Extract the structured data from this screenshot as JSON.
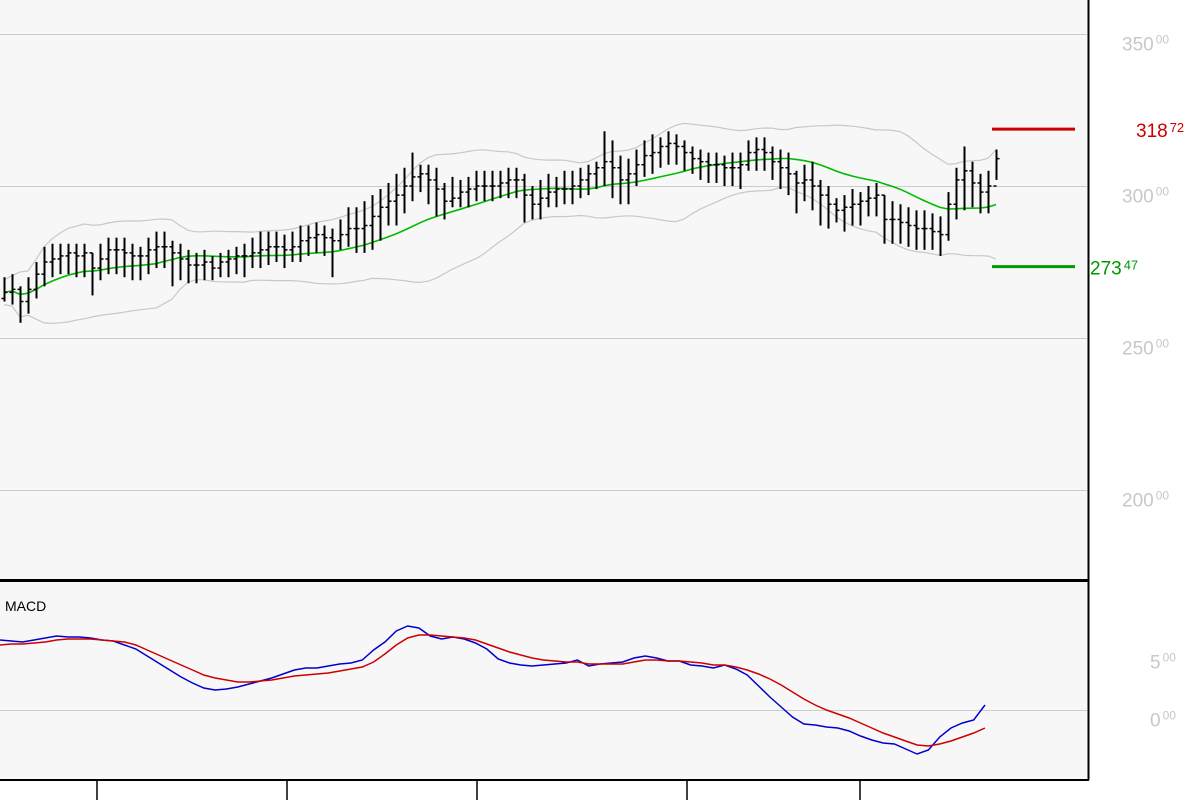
{
  "chart_data": [
    {
      "type": "ohlc",
      "indicators": [
        "bollinger-bands",
        "moving-average"
      ],
      "y_ticks": [
        {
          "value": 350,
          "int": "350",
          "dec": "00"
        },
        {
          "value": 300,
          "int": "300",
          "dec": "00"
        },
        {
          "value": 250,
          "int": "250",
          "dec": "00"
        },
        {
          "value": 200,
          "int": "200",
          "dec": "00"
        }
      ],
      "ylim": [
        172,
        362
      ],
      "grid": true,
      "levels": [
        {
          "name": "upper-level",
          "value": 318.72,
          "int": "318",
          "dec": "72",
          "color": "#cc0000"
        },
        {
          "name": "lower-level",
          "value": 273.47,
          "int": "273",
          "dec": "47",
          "color": "#009900"
        }
      ],
      "close": [
        265,
        266,
        262,
        266,
        271,
        275,
        276,
        277,
        278,
        277,
        278,
        273,
        276,
        279,
        279,
        278,
        277,
        277,
        279,
        280,
        280,
        278,
        276,
        274,
        274,
        275,
        273,
        275,
        276,
        277,
        277,
        278,
        279,
        280,
        280,
        279,
        280,
        282,
        283,
        284,
        283,
        282,
        284,
        286,
        286,
        287,
        290,
        293,
        295,
        297,
        300,
        303,
        304,
        302,
        299,
        295,
        296,
        298,
        299,
        300,
        300,
        300,
        301,
        302,
        302,
        297,
        294,
        296,
        298,
        299,
        299,
        300,
        302,
        304,
        306,
        308,
        306,
        302,
        304,
        307,
        310,
        311,
        313,
        314,
        313,
        311,
        309,
        308,
        307,
        307,
        306,
        306,
        307,
        311,
        312,
        311,
        308,
        306,
        304,
        301,
        302,
        300,
        297,
        294,
        292,
        293,
        294,
        295,
        296,
        297,
        289,
        289,
        288,
        287,
        286,
        286,
        285,
        284,
        294,
        302,
        305,
        301,
        298,
        300,
        309
      ],
      "high": [
        270,
        271,
        267,
        270,
        275,
        280,
        281,
        281,
        281,
        281,
        281,
        278,
        281,
        283,
        283,
        283,
        281,
        280,
        283,
        285,
        285,
        282,
        281,
        279,
        278,
        279,
        277,
        278,
        279,
        280,
        281,
        283,
        285,
        285,
        285,
        284,
        285,
        287,
        287,
        288,
        287,
        286,
        289,
        293,
        293,
        295,
        297,
        299,
        301,
        304,
        306,
        311,
        307,
        307,
        306,
        301,
        303,
        302,
        303,
        305,
        305,
        305,
        305,
        306,
        306,
        304,
        300,
        302,
        304,
        303,
        305,
        305,
        306,
        307,
        308,
        318,
        315,
        310,
        309,
        312,
        315,
        317,
        316,
        318,
        317,
        315,
        313,
        312,
        311,
        311,
        310,
        311,
        311,
        315,
        316,
        316,
        313,
        312,
        311,
        305,
        307,
        308,
        302,
        300,
        296,
        297,
        299,
        298,
        300,
        301,
        297,
        295,
        294,
        293,
        292,
        292,
        291,
        290,
        298,
        306,
        313,
        308,
        304,
        305,
        312
      ],
      "low": [
        262,
        261,
        255,
        258,
        263,
        267,
        270,
        271,
        271,
        270,
        270,
        264,
        269,
        271,
        271,
        270,
        269,
        269,
        271,
        273,
        273,
        267,
        269,
        268,
        268,
        269,
        269,
        270,
        270,
        271,
        270,
        273,
        273,
        274,
        275,
        273,
        275,
        275,
        277,
        278,
        277,
        270,
        279,
        280,
        278,
        278,
        279,
        282,
        287,
        287,
        291,
        295,
        298,
        294,
        290,
        289,
        293,
        293,
        293,
        295,
        295,
        295,
        296,
        296,
        296,
        288,
        289,
        289,
        293,
        293,
        294,
        294,
        296,
        297,
        299,
        300,
        296,
        294,
        294,
        300,
        303,
        304,
        306,
        307,
        307,
        305,
        304,
        302,
        301,
        301,
        300,
        300,
        299,
        305,
        305,
        305,
        302,
        299,
        297,
        291,
        295,
        292,
        287,
        286,
        288,
        285,
        287,
        287,
        290,
        290,
        281,
        281,
        281,
        280,
        279,
        279,
        279,
        277,
        282,
        289,
        292,
        293,
        291,
        291,
        302
      ]
    },
    {
      "type": "line",
      "title": "MACD",
      "y_ticks": [
        {
          "value": 5,
          "int": "5",
          "dec": "00"
        },
        {
          "value": 0,
          "int": "0",
          "dec": "00"
        }
      ],
      "ylim": [
        -5.5,
        8.8
      ],
      "grid": true,
      "series": [
        {
          "name": "macd",
          "color": "#0000cc",
          "values": [
            7.0,
            6.9,
            6.8,
            7.0,
            7.2,
            7.4,
            7.3,
            7.3,
            7.2,
            7.0,
            6.9,
            6.5,
            6.1,
            5.4,
            4.7,
            4.0,
            3.3,
            2.7,
            2.2,
            2.0,
            2.1,
            2.3,
            2.6,
            2.9,
            3.2,
            3.6,
            4.0,
            4.2,
            4.2,
            4.4,
            4.6,
            4.7,
            5.0,
            6.0,
            6.8,
            7.9,
            8.4,
            8.2,
            7.4,
            7.1,
            7.3,
            7.1,
            6.7,
            6.1,
            5.1,
            4.7,
            4.5,
            4.4,
            4.5,
            4.6,
            4.7,
            5.0,
            4.4,
            4.6,
            4.7,
            4.8,
            5.2,
            5.4,
            5.2,
            4.9,
            4.9,
            4.5,
            4.4,
            4.2,
            4.5,
            4.1,
            3.5,
            2.4,
            1.3,
            0.3,
            -0.7,
            -1.4,
            -1.5,
            -1.7,
            -1.8,
            -2.1,
            -2.6,
            -3.0,
            -3.3,
            -3.4,
            -3.9,
            -4.4,
            -4.0,
            -2.7,
            -1.8,
            -1.3,
            -1.0,
            0.5
          ]
        },
        {
          "name": "signal",
          "color": "#cc0000",
          "values": [
            6.5,
            6.6,
            6.6,
            6.7,
            6.8,
            7.0,
            7.1,
            7.1,
            7.1,
            7.0,
            6.9,
            6.8,
            6.5,
            6.0,
            5.5,
            5.0,
            4.5,
            4.0,
            3.5,
            3.2,
            3.0,
            2.8,
            2.8,
            2.9,
            3.0,
            3.2,
            3.4,
            3.5,
            3.6,
            3.7,
            3.9,
            4.1,
            4.3,
            4.8,
            5.6,
            6.5,
            7.2,
            7.5,
            7.5,
            7.4,
            7.3,
            7.2,
            7.0,
            6.6,
            6.2,
            5.8,
            5.5,
            5.2,
            5.0,
            4.9,
            4.8,
            4.8,
            4.6,
            4.6,
            4.6,
            4.6,
            4.8,
            5.0,
            5.0,
            4.9,
            4.9,
            4.8,
            4.7,
            4.5,
            4.5,
            4.3,
            4.0,
            3.6,
            3.1,
            2.5,
            1.8,
            1.1,
            0.5,
            0.0,
            -0.4,
            -0.8,
            -1.3,
            -1.8,
            -2.3,
            -2.7,
            -3.1,
            -3.5,
            -3.6,
            -3.4,
            -3.1,
            -2.7,
            -2.3,
            -1.8
          ]
        }
      ]
    }
  ]
}
